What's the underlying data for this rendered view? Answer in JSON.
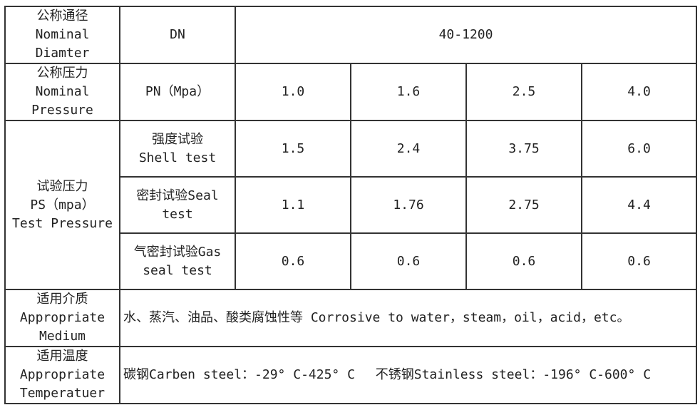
{
  "rows": {
    "diameter": {
      "label_cn": "公称通径",
      "label_en1": "Nominal",
      "label_en2": "Diamter",
      "unit": "DN",
      "value": "40-1200"
    },
    "pressure": {
      "label_cn": "公称压力",
      "label_en1": "Nominal",
      "label_en2": "Pressure",
      "unit": "PN（Mpa）",
      "values": [
        "1.0",
        "1.6",
        "2.5",
        "4.0"
      ]
    },
    "test": {
      "label_cn": "试验压力",
      "label_en1": "PS（mpa）",
      "label_en2": "Test Pressure",
      "sub": [
        {
          "name1": "强度试验",
          "name2": "Shell test",
          "values": [
            "1.5",
            "2.4",
            "3.75",
            "6.0"
          ]
        },
        {
          "name1": "密封试验Seal",
          "name2": "test",
          "values": [
            "1.1",
            "1.76",
            "2.75",
            "4.4"
          ]
        },
        {
          "name1": "气密封试验Gas",
          "name2": "seal test",
          "values": [
            "0.6",
            "0.6",
            "0.6",
            "0.6"
          ]
        }
      ]
    },
    "medium": {
      "label_cn": "适用介质",
      "label_en1": "Appropriate",
      "label_en2": "Medium",
      "value": "水、蒸汽、油品、酸类腐蚀性等 Corrosive to water，steam，oil，acid，etc。"
    },
    "temperature": {
      "label_cn": "适用温度",
      "label_en1": "Appropriate",
      "label_en2": "Temperatuer",
      "value": "碳钢Carben steel：-29° C-425° C　 不锈钢Stainless steel：-196° C-600° C"
    }
  }
}
